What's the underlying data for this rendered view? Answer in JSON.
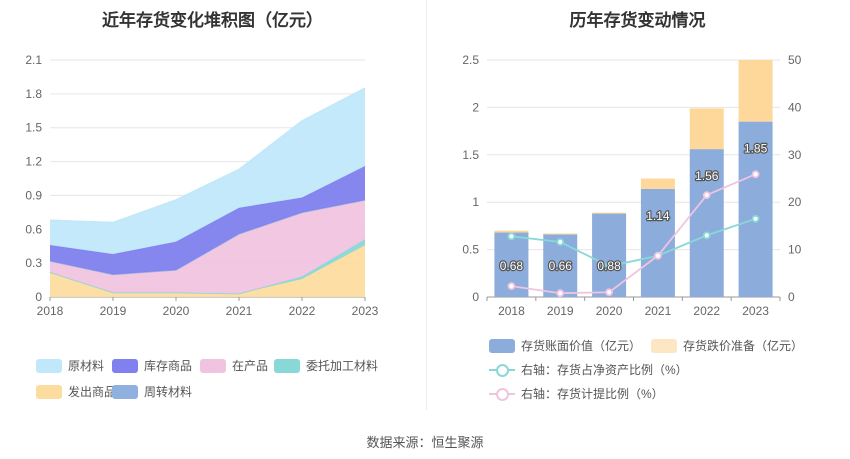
{
  "chart_data": [
    {
      "type": "area",
      "stacked": true,
      "title": "近年存货变化堆积图（亿元）",
      "categories": [
        "2018",
        "2019",
        "2020",
        "2021",
        "2022",
        "2023"
      ],
      "y_ticks": [
        "0",
        "0.3",
        "0.6",
        "0.9",
        "1.2",
        "1.5",
        "1.8",
        "2.1"
      ],
      "ylim": [
        0,
        2.1
      ],
      "grid": true,
      "legend_position": "bottom",
      "series": [
        {
          "name": "发出商品",
          "color": "#fddca0",
          "values": [
            0.22,
            0.04,
            0.04,
            0.03,
            0.16,
            0.46
          ]
        },
        {
          "name": "委托加工材料",
          "color": "#88d8d8",
          "values": [
            0.0,
            0.0,
            0.0,
            0.0,
            0.02,
            0.05
          ]
        },
        {
          "name": "在产品",
          "color": "#f0c4e0",
          "values": [
            0.1,
            0.16,
            0.2,
            0.53,
            0.57,
            0.35
          ]
        },
        {
          "name": "周转材料",
          "color": "#90b0e0",
          "values": [
            0.0,
            0.0,
            0.0,
            0.0,
            0.0,
            0.0
          ]
        },
        {
          "name": "库存商品",
          "color": "#8080ee",
          "values": [
            0.14,
            0.18,
            0.25,
            0.23,
            0.13,
            0.3
          ]
        },
        {
          "name": "原材料",
          "color": "#c0e8fa",
          "values": [
            0.22,
            0.28,
            0.37,
            0.34,
            0.68,
            0.69
          ]
        }
      ],
      "legend_order": [
        "原材料",
        "库存商品",
        "在产品",
        "委托加工材料",
        "发出商品",
        "周转材料"
      ]
    },
    {
      "type": "bar",
      "title": "历年存货变动情况",
      "categories": [
        "2018",
        "2019",
        "2020",
        "2021",
        "2022",
        "2023"
      ],
      "y_ticks": [
        "0",
        "0.5",
        "1",
        "1.5",
        "2",
        "2.5"
      ],
      "ylim": [
        0,
        2.5
      ],
      "y2_ticks": [
        "0",
        "10",
        "20",
        "30",
        "40",
        "50"
      ],
      "y2lim": [
        0,
        50
      ],
      "stacked": true,
      "grid": true,
      "legend_position": "bottom",
      "series": [
        {
          "name": "存货账面价值（亿元）",
          "color": "#8cacdc",
          "axis": "left",
          "values": [
            0.68,
            0.66,
            0.88,
            1.14,
            1.56,
            1.85
          ],
          "labels": [
            "0.68",
            "0.66",
            "0.88",
            "1.14",
            "1.56",
            "1.85"
          ]
        },
        {
          "name": "存货跌价准备（亿元）",
          "color": "#fdd89a",
          "axis": "left",
          "values": [
            0.02,
            0.01,
            0.01,
            0.11,
            0.43,
            0.65
          ]
        },
        {
          "name": "右轴：存货占净资产比例（%）",
          "type": "line",
          "color": "#88d8d8",
          "axis": "right",
          "values": [
            12.8,
            11.6,
            6.5,
            8.7,
            13.0,
            16.5
          ]
        },
        {
          "name": "右轴：存货计提比例（%）",
          "type": "line",
          "color": "#f0c4e0",
          "axis": "right",
          "values": [
            2.3,
            0.8,
            1.0,
            8.7,
            21.5,
            25.9
          ]
        }
      ]
    }
  ],
  "source_text": "数据来源：恒生聚源"
}
